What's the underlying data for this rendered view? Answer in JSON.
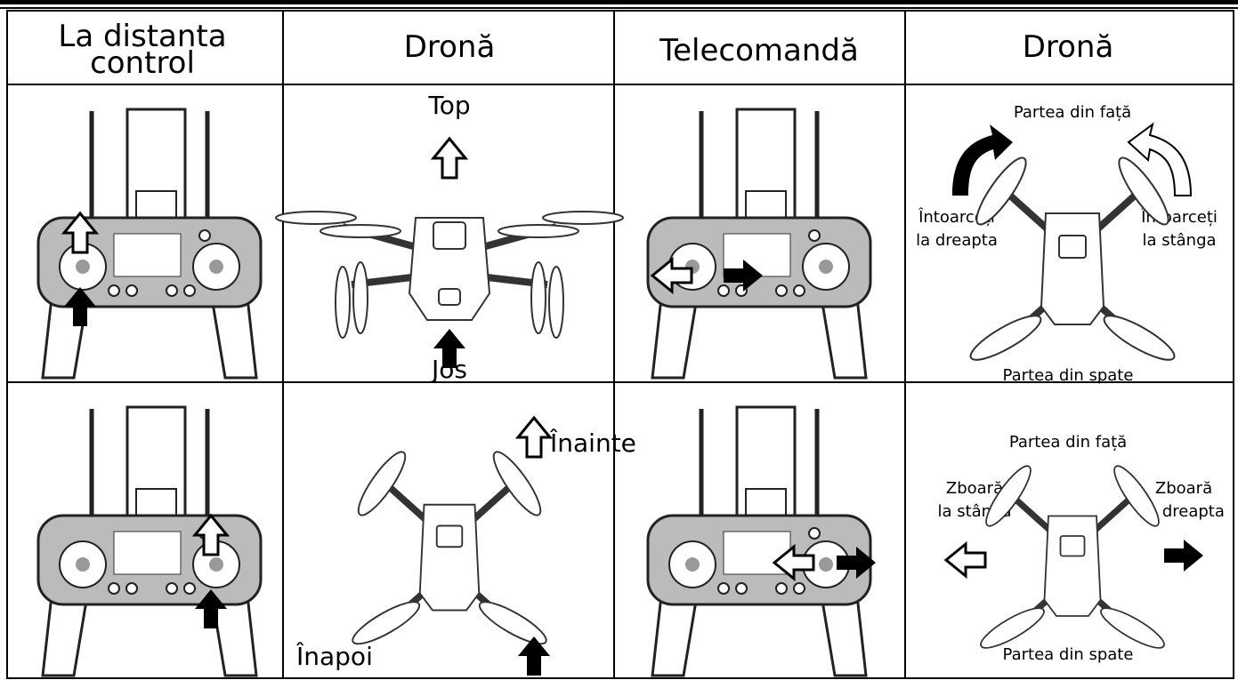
{
  "header": {
    "col1": [
      "La distanta",
      "control"
    ],
    "col2": "Dronă",
    "col3": "Telecomandă",
    "col4": "Dronă"
  },
  "rows": [
    {
      "drone_up": "Top",
      "drone_down": "Jos",
      "front": "Partea din față",
      "left": [
        "Întoarceți",
        "la dreapta"
      ],
      "right": [
        "Întoarceți",
        "la stânga"
      ],
      "back": "Partea din spate"
    },
    {
      "drone_up": "Înainte",
      "drone_down": "Înapoi",
      "front": "Partea din față",
      "left": [
        "Zboară",
        "la stânga"
      ],
      "right": [
        "Zboară",
        "la dreapta"
      ],
      "back": "Partea din spate"
    }
  ]
}
